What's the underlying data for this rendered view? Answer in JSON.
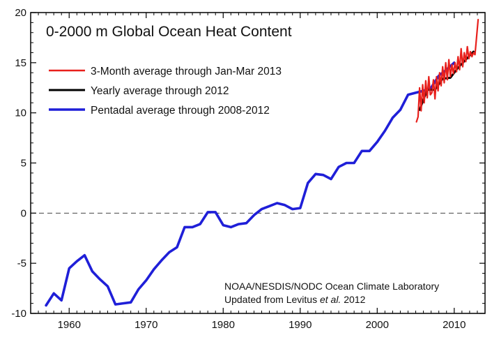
{
  "chart_data": {
    "type": "line",
    "title": "0-2000 m Global Ocean Heat Content",
    "xlabel": "",
    "ylabel": "",
    "xlim": [
      1955,
      2014
    ],
    "ylim": [
      -10,
      20
    ],
    "x_ticks": [
      1960,
      1970,
      1980,
      1990,
      2000,
      2010
    ],
    "x_tick_labels": [
      "1960",
      "1970",
      "1980",
      "1990",
      "2000",
      "2010"
    ],
    "y_ticks": [
      -10,
      -5,
      0,
      5,
      10,
      15,
      20
    ],
    "y_tick_labels": [
      "-10",
      "-5",
      "0",
      "5",
      "10",
      "15",
      "20"
    ],
    "zero_line": "dashed",
    "grid": false,
    "legend_position": "top-left",
    "series": [
      {
        "name": "3-Month average through Jan-Mar 2013",
        "color": "#e8201c",
        "x": [
          2005.1,
          2005.3,
          2005.5,
          2005.7,
          2005.9,
          2006.1,
          2006.3,
          2006.5,
          2006.7,
          2006.9,
          2007.1,
          2007.3,
          2007.5,
          2007.7,
          2007.9,
          2008.1,
          2008.3,
          2008.5,
          2008.7,
          2008.9,
          2009.1,
          2009.3,
          2009.5,
          2009.7,
          2009.9,
          2010.1,
          2010.3,
          2010.5,
          2010.7,
          2010.9,
          2011.1,
          2011.3,
          2011.5,
          2011.7,
          2011.9,
          2012.1,
          2012.3,
          2012.5,
          2012.7,
          2012.9,
          2013.1
        ],
        "values": [
          9.1,
          9.6,
          12.5,
          10.2,
          12.8,
          11.0,
          13.2,
          11.5,
          13.6,
          11.8,
          12.0,
          13.3,
          11.4,
          13.6,
          12.2,
          14.0,
          12.7,
          14.6,
          13.0,
          15.0,
          13.3,
          15.3,
          13.6,
          14.8,
          13.9,
          15.0,
          14.1,
          15.6,
          14.3,
          16.4,
          14.6,
          16.0,
          15.1,
          16.6,
          15.4,
          16.1,
          15.6,
          16.0,
          15.8,
          17.5,
          19.3
        ]
      },
      {
        "name": "Yearly average through 2012",
        "color": "#000000",
        "x": [
          2005.5,
          2006.5,
          2007.5,
          2008.5,
          2009.5,
          2010.5,
          2011.5,
          2012.5
        ],
        "values": [
          10.3,
          12.3,
          12.3,
          13.4,
          13.5,
          14.5,
          15.3,
          16.1
        ]
      },
      {
        "name": "Pentadal average through 2008-2012",
        "color": "#1f1fd8",
        "x": [
          1957,
          1958,
          1959,
          1960,
          1961,
          1962,
          1963,
          1964,
          1965,
          1966,
          1967,
          1968,
          1969,
          1970,
          1971,
          1972,
          1973,
          1974,
          1975,
          1976,
          1977,
          1978,
          1979,
          1980,
          1981,
          1982,
          1983,
          1984,
          1985,
          1986,
          1987,
          1988,
          1989,
          1990,
          1991,
          1992,
          1993,
          1994,
          1995,
          1996,
          1997,
          1998,
          1999,
          2000,
          2001,
          2002,
          2003,
          2004,
          2005,
          2006,
          2007,
          2008,
          2009,
          2010
        ],
        "values": [
          -9.2,
          -8.0,
          -8.7,
          -5.5,
          -4.8,
          -4.2,
          -5.8,
          -6.6,
          -7.3,
          -9.1,
          -9.0,
          -8.9,
          -7.6,
          -6.7,
          -5.6,
          -4.7,
          -3.9,
          -3.4,
          -1.4,
          -1.4,
          -1.1,
          0.1,
          0.1,
          -1.2,
          -1.4,
          -1.1,
          -1.0,
          -0.2,
          0.4,
          0.7,
          1.0,
          0.8,
          0.4,
          0.5,
          3.0,
          3.9,
          3.8,
          3.4,
          4.6,
          5.0,
          5.0,
          6.2,
          6.2,
          7.1,
          8.2,
          9.5,
          10.3,
          11.8,
          12.0,
          12.2,
          12.5,
          13.7,
          14.3,
          15.0
        ]
      }
    ],
    "annotations": [
      "NOAA/NESDIS/NODC Ocean Climate Laboratory",
      "Updated from Levitus",
      "et al.",
      "2012"
    ]
  }
}
